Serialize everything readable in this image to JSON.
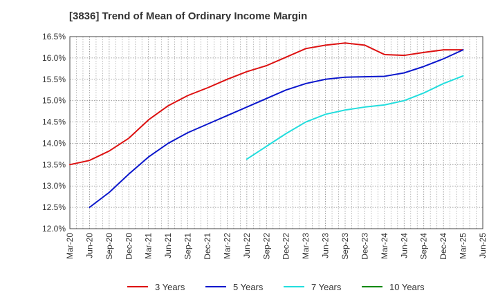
{
  "chart_data": {
    "type": "line",
    "title": "[3836]  Trend of Mean of Ordinary Income Margin",
    "xlabel": "",
    "ylabel": "",
    "ylim": [
      12.0,
      16.5
    ],
    "yticks": [
      "12.0%",
      "12.5%",
      "13.0%",
      "13.5%",
      "14.0%",
      "14.5%",
      "15.0%",
      "15.5%",
      "16.0%",
      "16.5%"
    ],
    "categories": [
      "Mar-20",
      "Jun-20",
      "Sep-20",
      "Dec-20",
      "Mar-21",
      "Jun-21",
      "Sep-21",
      "Dec-21",
      "Mar-22",
      "Jun-22",
      "Sep-22",
      "Dec-22",
      "Mar-23",
      "Jun-23",
      "Sep-23",
      "Dec-23",
      "Mar-24",
      "Jun-24",
      "Sep-24",
      "Dec-24",
      "Mar-25",
      "Jun-25"
    ],
    "grid": true,
    "legend_position": "bottom",
    "series": [
      {
        "name": "3 Years",
        "color": "#dd1111",
        "values": [
          13.5,
          13.6,
          13.82,
          14.12,
          14.55,
          14.88,
          15.12,
          15.3,
          15.5,
          15.68,
          15.82,
          16.02,
          16.22,
          16.3,
          16.35,
          16.3,
          16.08,
          16.06,
          16.13,
          16.19,
          16.19,
          null
        ]
      },
      {
        "name": "5 Years",
        "color": "#0a16cc",
        "values": [
          null,
          12.5,
          12.85,
          13.28,
          13.68,
          14.0,
          14.25,
          14.45,
          14.65,
          14.85,
          15.05,
          15.25,
          15.4,
          15.5,
          15.55,
          15.56,
          15.57,
          15.65,
          15.8,
          15.98,
          16.19,
          null
        ]
      },
      {
        "name": "7 Years",
        "color": "#22dddd",
        "values": [
          null,
          null,
          null,
          null,
          null,
          null,
          null,
          null,
          null,
          13.63,
          13.93,
          14.23,
          14.5,
          14.68,
          14.78,
          14.85,
          14.9,
          15.0,
          15.18,
          15.4,
          15.58,
          null
        ]
      },
      {
        "name": "10 Years",
        "color": "#118811",
        "values": [
          null,
          null,
          null,
          null,
          null,
          null,
          null,
          null,
          null,
          null,
          null,
          null,
          null,
          null,
          null,
          null,
          null,
          null,
          null,
          null,
          null,
          null
        ]
      }
    ]
  }
}
